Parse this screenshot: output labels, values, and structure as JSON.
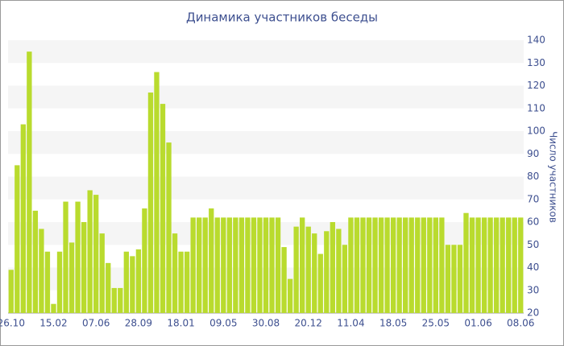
{
  "chart_data": {
    "type": "bar",
    "title": "Динамика участников беседы",
    "y_axis_label": "Число участников",
    "categories": [
      "26.10",
      null,
      null,
      null,
      null,
      null,
      null,
      "15.02",
      null,
      null,
      null,
      null,
      null,
      null,
      "07.06",
      null,
      null,
      null,
      null,
      null,
      null,
      "28.09",
      null,
      null,
      null,
      null,
      null,
      null,
      "18.01",
      null,
      null,
      null,
      null,
      null,
      null,
      "09.05",
      null,
      null,
      null,
      null,
      null,
      null,
      "30.08",
      null,
      null,
      null,
      null,
      null,
      null,
      "20.12",
      null,
      null,
      null,
      null,
      null,
      null,
      "11.04",
      null,
      null,
      null,
      null,
      null,
      null,
      "18.05",
      null,
      null,
      null,
      null,
      null,
      null,
      "25.05",
      null,
      null,
      null,
      null,
      null,
      null,
      "01.06",
      null,
      null,
      null,
      null,
      null,
      null,
      "08.06"
    ],
    "values": [
      39,
      85,
      103,
      135,
      65,
      57,
      47,
      24,
      47,
      69,
      51,
      69,
      60,
      74,
      72,
      55,
      42,
      31,
      31,
      47,
      45,
      48,
      66,
      117,
      126,
      112,
      95,
      55,
      47,
      47,
      62,
      62,
      62,
      66,
      62,
      62,
      62,
      62,
      62,
      62,
      62,
      62,
      62,
      62,
      62,
      49,
      35,
      58,
      62,
      58,
      55,
      46,
      56,
      60,
      57,
      50,
      62,
      62,
      62,
      62,
      62,
      62,
      62,
      62,
      62,
      62,
      62,
      62,
      62,
      62,
      62,
      62,
      50,
      50,
      50,
      64,
      62,
      62,
      62,
      62,
      62,
      62,
      62,
      62,
      62
    ],
    "color": "#b9db2e",
    "ylim": [
      20,
      140
    ],
    "yticks": [
      20,
      30,
      40,
      50,
      60,
      70,
      80,
      90,
      100,
      110,
      120,
      130,
      140
    ],
    "grid": true,
    "y_axis_side": "right"
  }
}
